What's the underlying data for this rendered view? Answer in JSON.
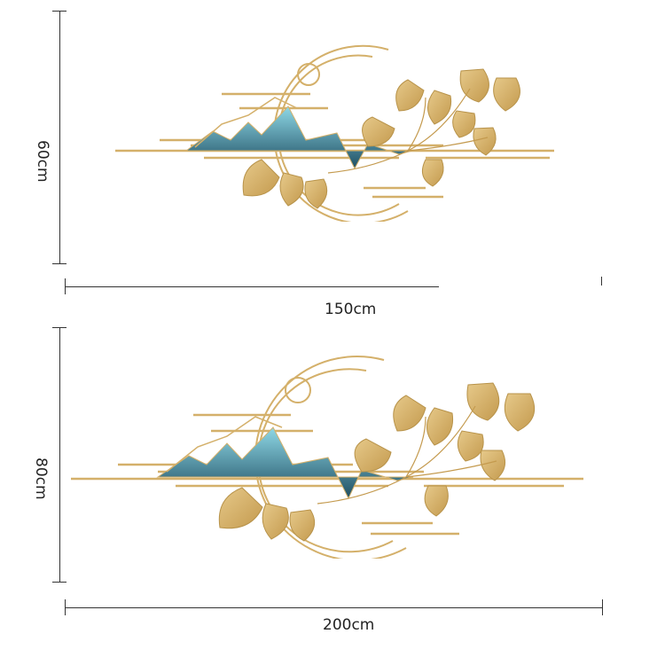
{
  "top_product": {
    "height_label": "60cm",
    "width_label": "150cm"
  },
  "bottom_product": {
    "height_label": "80cm",
    "width_label": "200cm"
  },
  "colors": {
    "gold": "#d4b06a",
    "gold_dark": "#b8934a",
    "mountain_teal": "#2f7f92",
    "mountain_light": "#6cc3d6",
    "dimension_line": "#333333"
  }
}
